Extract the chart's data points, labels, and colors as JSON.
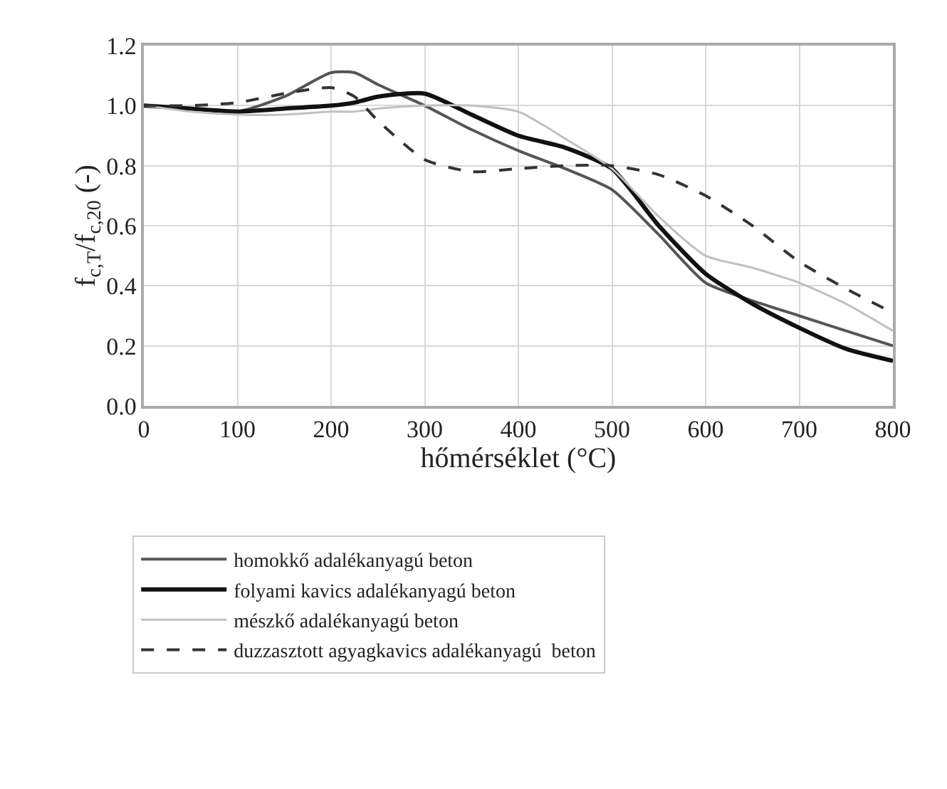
{
  "chart_data": {
    "type": "line",
    "xlabel": "hőmérséklet (°C)",
    "ylabel": "f$_{c,T}$/f$_{c,20}$ (-)",
    "x": [
      0,
      50,
      100,
      150,
      200,
      225,
      250,
      300,
      350,
      400,
      450,
      500,
      550,
      600,
      650,
      700,
      750,
      800
    ],
    "series": [
      {
        "name": "homokkő adalékanyagú beton",
        "color": "#555555",
        "line_style": "solid",
        "values": [
          1.0,
          0.99,
          0.98,
          1.03,
          1.11,
          1.11,
          1.07,
          1.0,
          0.92,
          0.85,
          0.79,
          0.72,
          0.57,
          0.41,
          0.35,
          0.3,
          0.25,
          0.2
        ]
      },
      {
        "name": "folyami kavics adalékanyagú beton",
        "color": "#111111",
        "line_style": "solid",
        "values": [
          1.0,
          0.99,
          0.98,
          0.99,
          1.0,
          1.01,
          1.03,
          1.04,
          0.97,
          0.9,
          0.86,
          0.79,
          0.6,
          0.44,
          0.34,
          0.26,
          0.19,
          0.15
        ]
      },
      {
        "name": "mészkő adalékanyagú beton",
        "color": "#c0c0c0",
        "line_style": "solid",
        "values": [
          1.0,
          0.98,
          0.97,
          0.97,
          0.98,
          0.98,
          0.99,
          1.0,
          1.0,
          0.98,
          0.89,
          0.79,
          0.63,
          0.5,
          0.46,
          0.41,
          0.34,
          0.25
        ]
      },
      {
        "name": "duzzasztott agyagkavics adalékanyagú  beton",
        "color": "#333333",
        "line_style": "dashed",
        "values": [
          1.0,
          1.0,
          1.01,
          1.04,
          1.06,
          1.03,
          0.95,
          0.82,
          0.78,
          0.79,
          0.8,
          0.8,
          0.77,
          0.7,
          0.6,
          0.48,
          0.39,
          0.31
        ]
      }
    ],
    "xlim": [
      0,
      800
    ],
    "xticks": [
      0,
      100,
      200,
      300,
      400,
      500,
      600,
      700,
      800
    ],
    "ylim": [
      0,
      1.2
    ],
    "yticks": [
      {
        "value": 0,
        "label": "0.0"
      },
      0.2,
      0.4,
      0.6,
      0.8,
      {
        "value": 1,
        "label": "1.0"
      },
      1.2
    ],
    "grid": true,
    "legend": "bottom",
    "marker": "none"
  }
}
